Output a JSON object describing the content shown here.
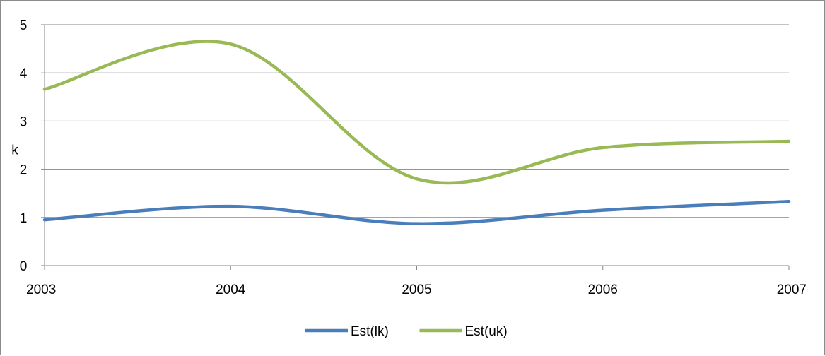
{
  "chart_data": {
    "type": "line",
    "x": [
      2003,
      2004,
      2005,
      2006,
      2007
    ],
    "xticks": [
      "2003",
      "2004",
      "2005",
      "2006",
      "2007"
    ],
    "ylim": [
      0,
      5
    ],
    "yticks": [
      "0",
      "1",
      "2",
      "3",
      "4",
      "5"
    ],
    "xlabel": "",
    "ylabel": "k",
    "grid": true,
    "legend_position": "bottom",
    "series": [
      {
        "name": "Est(lk)",
        "color": "#4a7ebb",
        "values": [
          0.95,
          1.23,
          0.87,
          1.15,
          1.33
        ]
      },
      {
        "name": "Est(uk)",
        "color": "#98b954",
        "values": [
          3.66,
          4.6,
          1.8,
          2.45,
          2.58
        ]
      }
    ]
  }
}
